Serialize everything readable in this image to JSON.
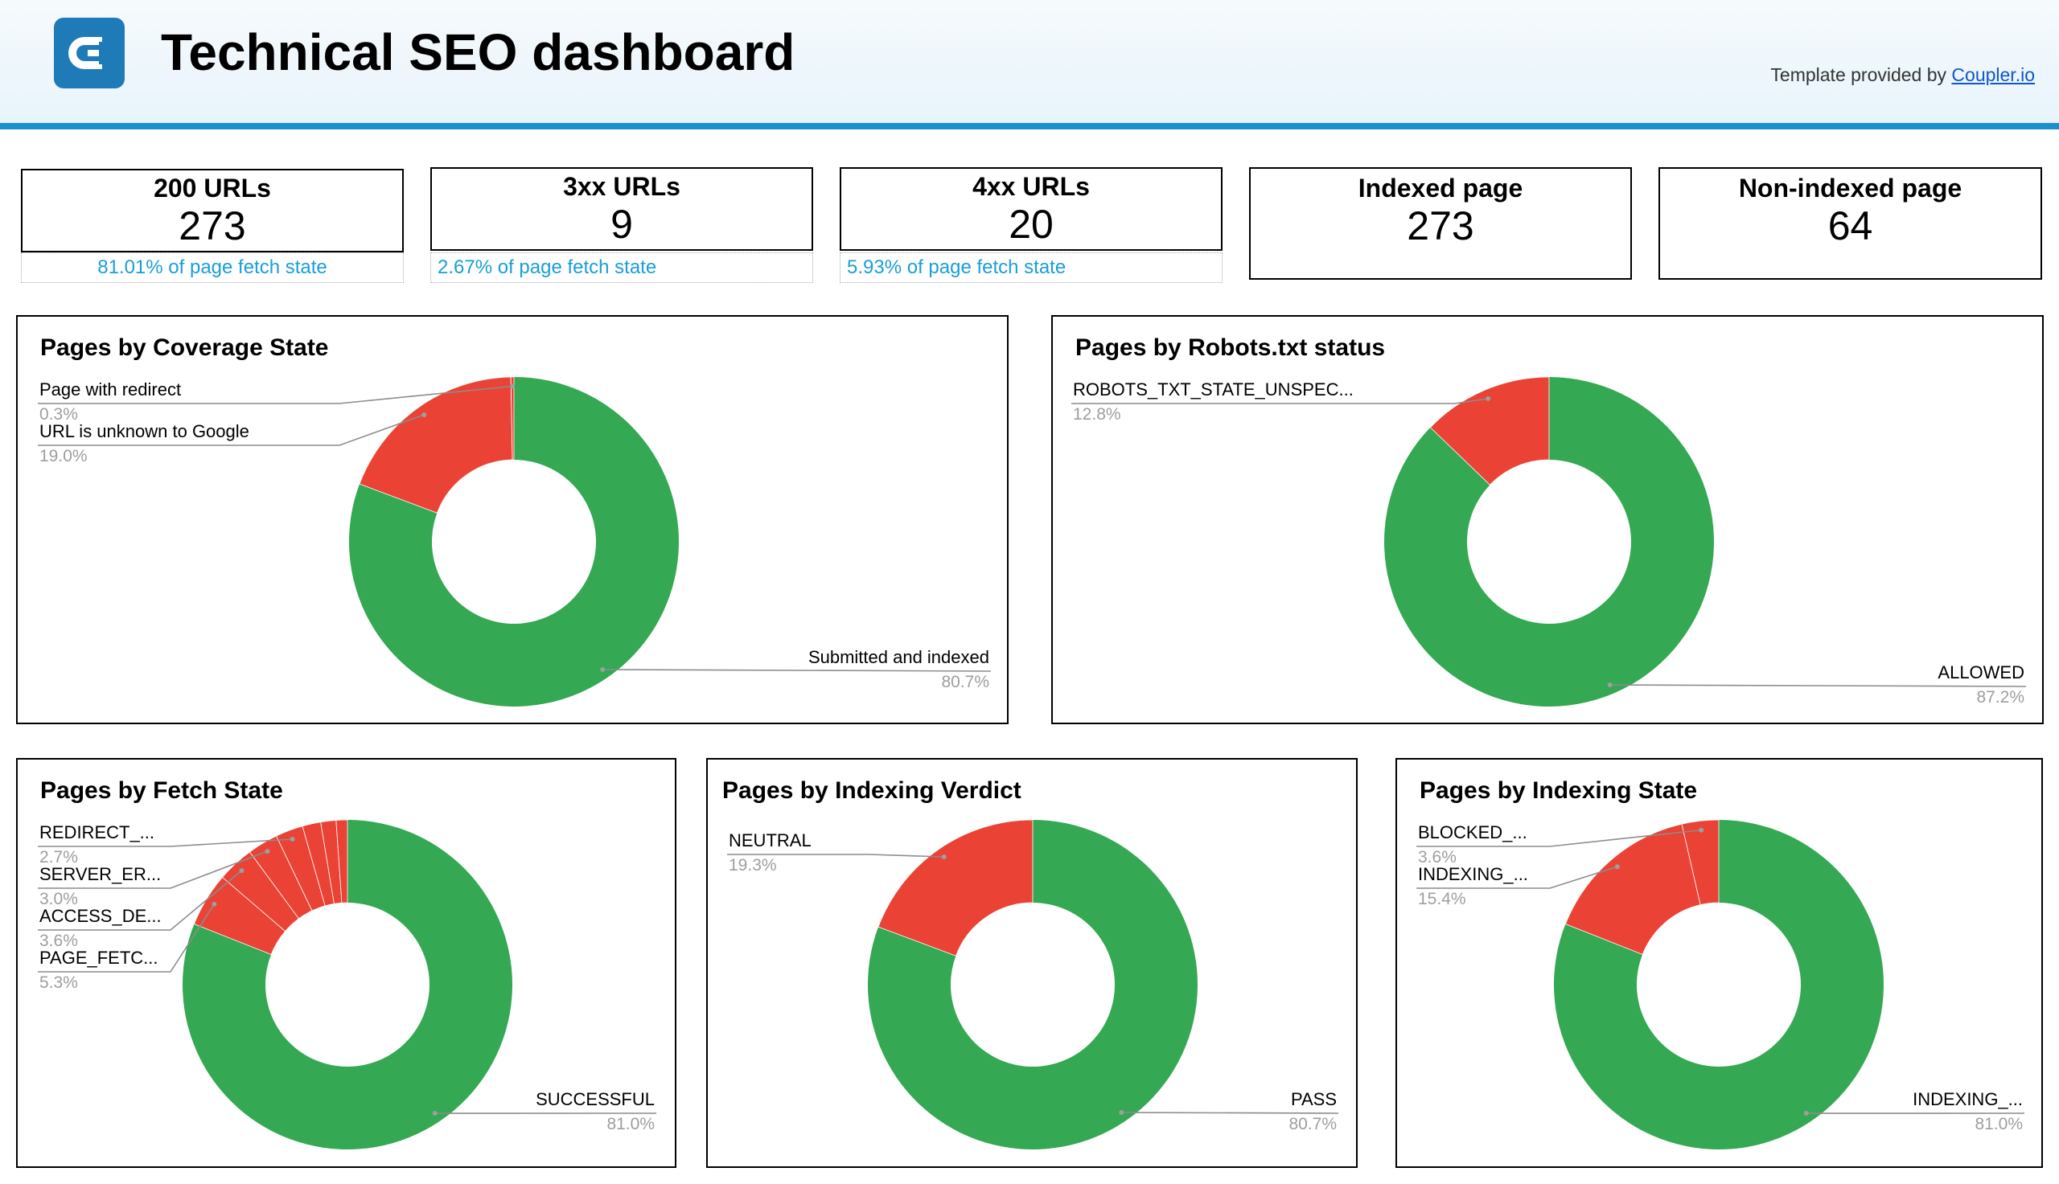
{
  "header": {
    "title": "Technical SEO dashboard",
    "credit_prefix": "Template provided by",
    "credit_link": "Coupler.io",
    "logo_icon": "coupler-logo-icon"
  },
  "colors": {
    "green": "#34a853",
    "red": "#ea4335",
    "accent": "#1a8fd0",
    "subtext": "#1a9ed8"
  },
  "kpis": [
    {
      "label": "200 URLs",
      "value": "273",
      "sub": "81.01% of page fetch state"
    },
    {
      "label": "3xx URLs",
      "value": "9",
      "sub": "2.67% of page fetch state"
    },
    {
      "label": "4xx URLs",
      "value": "20",
      "sub": "5.93% of page fetch state"
    },
    {
      "label": "Indexed page",
      "value": "273"
    },
    {
      "label": "Non-indexed page",
      "value": "64"
    }
  ],
  "chart_data": [
    {
      "type": "pie",
      "title": "Pages by Coverage State",
      "slices": [
        {
          "label": "Submitted and indexed",
          "value": 80.7,
          "pct": "80.7%"
        },
        {
          "label": "URL is unknown to Google",
          "value": 19.0,
          "pct": "19.0%"
        },
        {
          "label": "Page with redirect",
          "value": 0.3,
          "pct": "0.3%"
        }
      ]
    },
    {
      "type": "pie",
      "title": "Pages by Robots.txt status",
      "slices": [
        {
          "label": "ALLOWED",
          "value": 87.2,
          "pct": "87.2%"
        },
        {
          "label": "ROBOTS_TXT_STATE_UNSPEC...",
          "value": 12.8,
          "pct": "12.8%"
        }
      ]
    },
    {
      "type": "pie",
      "title": "Pages by Fetch State",
      "slices": [
        {
          "label": "SUCCESSFUL",
          "value": 81.0,
          "pct": "81.0%"
        },
        {
          "label": "PAGE_FETC...",
          "value": 5.3,
          "pct": "5.3%"
        },
        {
          "label": "ACCESS_DE...",
          "value": 3.6,
          "pct": "3.6%"
        },
        {
          "label": "SERVER_ER...",
          "value": 3.0,
          "pct": "3.0%"
        },
        {
          "label": "REDIRECT_...",
          "value": 2.7,
          "pct": "2.7%"
        },
        {
          "label": "",
          "value": 1.8,
          "pct": ""
        },
        {
          "label": "",
          "value": 1.5,
          "pct": ""
        },
        {
          "label": "",
          "value": 1.1,
          "pct": ""
        }
      ]
    },
    {
      "type": "pie",
      "title": "Pages by Indexing Verdict",
      "slices": [
        {
          "label": "PASS",
          "value": 80.7,
          "pct": "80.7%"
        },
        {
          "label": "NEUTRAL",
          "value": 19.3,
          "pct": "19.3%"
        }
      ]
    },
    {
      "type": "pie",
      "title": "Pages by Indexing State",
      "slices": [
        {
          "label": "INDEXING_...",
          "value": 81.0,
          "pct": "81.0%"
        },
        {
          "label": "INDEXING_...",
          "value": 15.4,
          "pct": "15.4%"
        },
        {
          "label": "BLOCKED_...",
          "value": 3.6,
          "pct": "3.6%"
        }
      ]
    }
  ]
}
